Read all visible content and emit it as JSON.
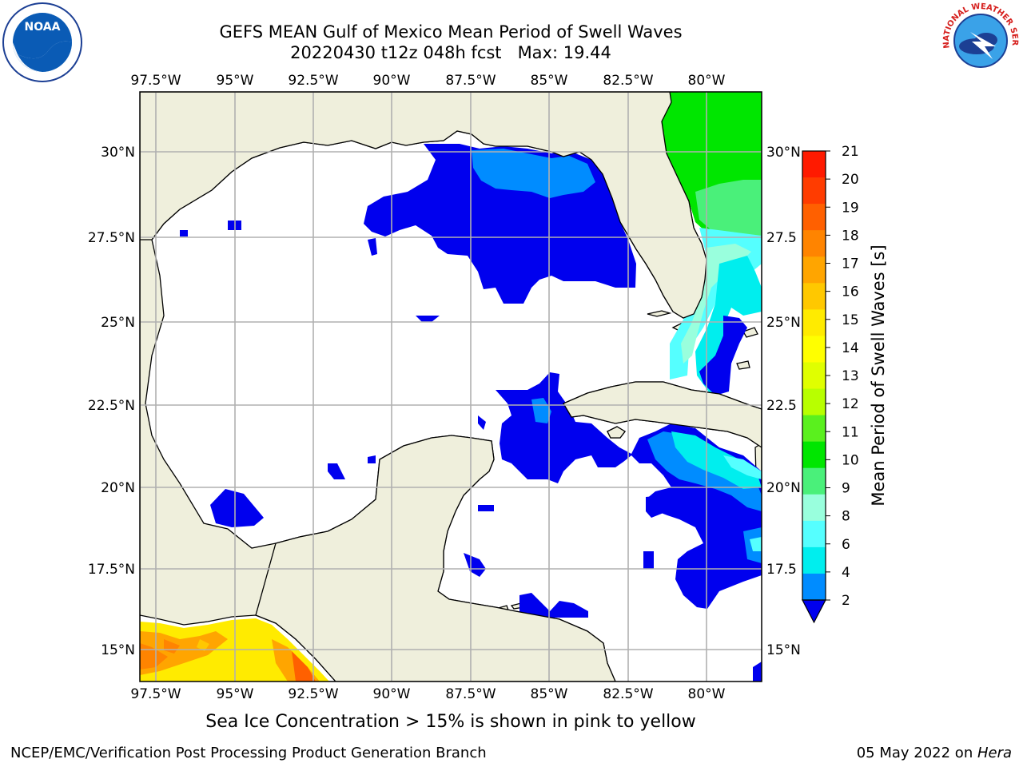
{
  "title": {
    "line1": "GEFS MEAN Gulf of Mexico Mean Period of Swell Waves",
    "line2": "20220430 t12z 048h fcst   Max: 19.44"
  },
  "map": {
    "lon_ticks": [
      "97.5°W",
      "95°W",
      "92.5°W",
      "90°W",
      "87.5°W",
      "85°W",
      "82.5°W",
      "80°W"
    ],
    "lat_ticks_left": [
      "30°N",
      "27.5°N",
      "25°N",
      "22.5°N",
      "20°N",
      "17.5°N",
      "15°N"
    ],
    "lat_ticks_right": [
      "30°N",
      "27.5",
      "25°N",
      "22.5",
      "20°N",
      "17.5",
      "15°N"
    ],
    "lon_range": [
      -98,
      -78.3
    ],
    "lat_range": [
      14,
      31.8
    ],
    "colors": {
      "land": "#efefdc",
      "ocean": "#ffffff",
      "grid": "#b0b0b0",
      "coast": "#000000"
    }
  },
  "colorbar": {
    "label": "Mean Period of Swell Waves [s]",
    "ticks": [
      "21",
      "20",
      "19",
      "18",
      "17",
      "16",
      "15",
      "14",
      "13",
      "12",
      "11",
      "10",
      "9",
      "8",
      "6",
      "4",
      "2"
    ],
    "colors": [
      "#ff1a00",
      "#ff3c00",
      "#ff6000",
      "#ff8400",
      "#ffa500",
      "#ffc800",
      "#ffeb00",
      "#ffff00",
      "#e0ff00",
      "#b8ff00",
      "#5af01e",
      "#00e600",
      "#4af07a",
      "#99ffdd",
      "#55ffff",
      "#00eeee",
      "#008cff",
      "#0000ee"
    ]
  },
  "footer_note": "Sea Ice Concentration > 15% is shown in pink to yellow",
  "credit_left": "NCEP/EMC/Verification Post Processing Product Generation Branch",
  "credit_right_date": "05 May 2022 on ",
  "credit_right_host": "Hera",
  "logos": {
    "noaa": "NOAA",
    "nws": "NATIONAL WEATHER SERVICE"
  }
}
